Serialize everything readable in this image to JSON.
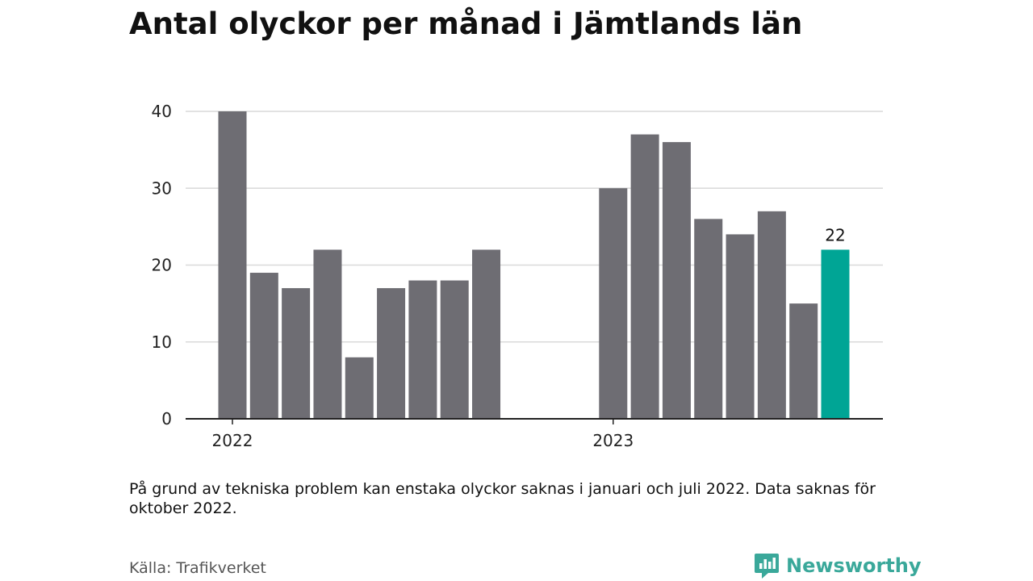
{
  "title": "Antal olyckor per månad i Jämtlands län",
  "note": "På grund av tekniska problem kan enstaka olyckor saknas i januari och juli 2022. Data saknas för oktober 2022.",
  "source": "Källa: Trafikverket",
  "brand": {
    "name": "Newsworthy",
    "icon": "newsworthy-logo-icon"
  },
  "colors": {
    "bar": "#6e6d73",
    "highlight": "#00a595",
    "grid": "#d9d9d9",
    "axis": "#222222",
    "brand": "#3aa89a"
  },
  "chart_data": {
    "type": "bar",
    "title": "Antal olyckor per månad i Jämtlands län",
    "xlabel": "",
    "ylabel": "",
    "ylim": [
      0,
      40
    ],
    "yticks": [
      0,
      10,
      20,
      30,
      40
    ],
    "grid": true,
    "x": [
      "2022-01",
      "2022-02",
      "2022-03",
      "2022-04",
      "2022-05",
      "2022-06",
      "2022-07",
      "2022-08",
      "2022-09",
      "2022-10",
      "2022-11",
      "2022-12",
      "2023-01",
      "2023-02",
      "2023-03",
      "2023-04",
      "2023-05",
      "2023-06",
      "2023-07",
      "2023-08"
    ],
    "values": [
      40,
      19,
      17,
      22,
      8,
      17,
      18,
      18,
      22,
      null,
      null,
      null,
      30,
      37,
      36,
      26,
      24,
      27,
      15,
      22
    ],
    "highlight_index": 19,
    "data_labels": [
      {
        "index": 19,
        "text": "22"
      }
    ],
    "xtick_labels": [
      {
        "index": 0,
        "text": "2022"
      },
      {
        "index": 12,
        "text": "2023"
      }
    ]
  }
}
